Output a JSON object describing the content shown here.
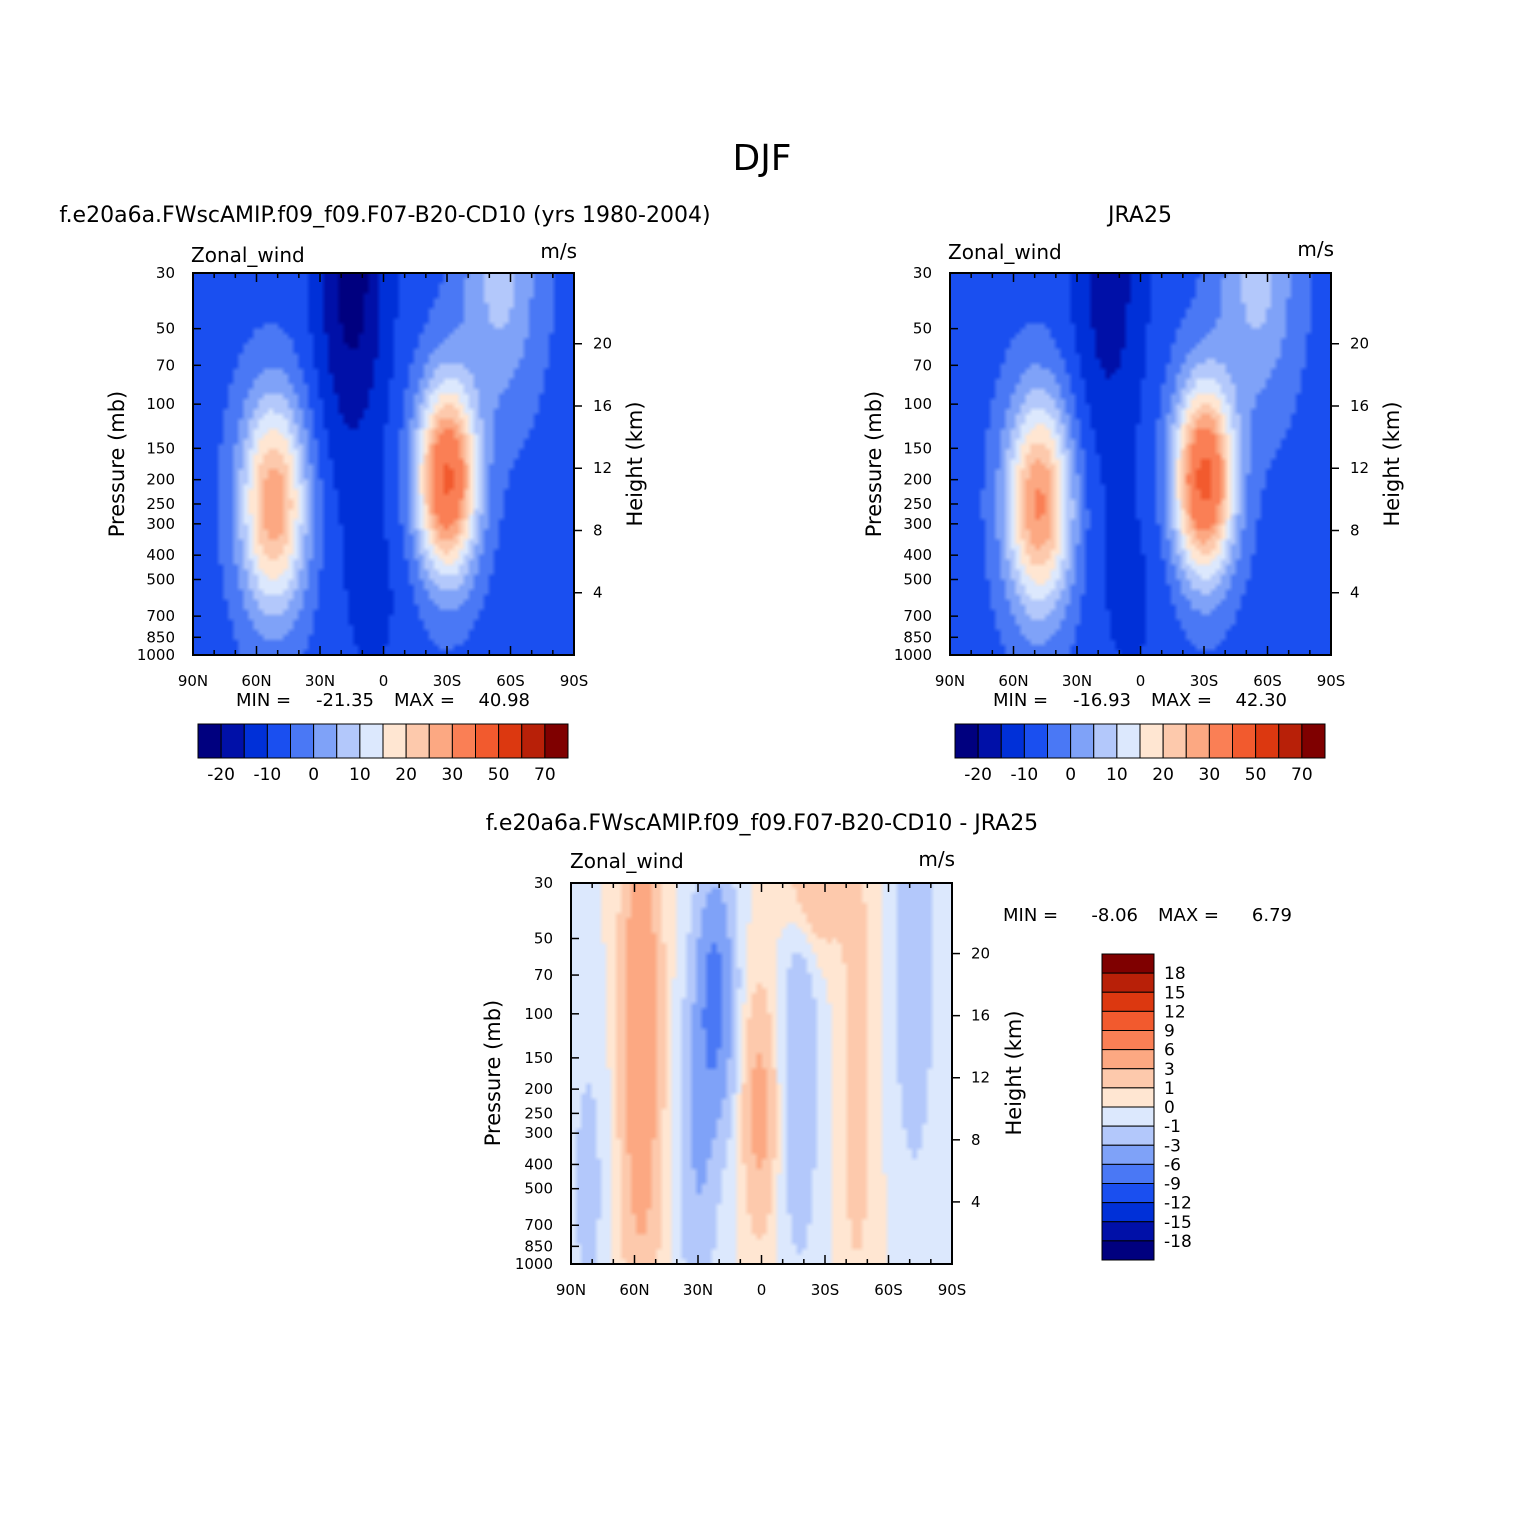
{
  "figure": {
    "title": "DJF"
  },
  "chart_data": [
    {
      "type": "heatmap",
      "id": "model",
      "title": "f.e20a6a.FWscAMIP.f09_f09.F07-B20-CD10 (yrs 1980-2004)",
      "variable_label": "Zonal_wind",
      "units_label": "m/s",
      "ylabel": "Pressure (mb)",
      "ylabel_right": "Height (km)",
      "x_ticks": [
        "90N",
        "60N",
        "30N",
        "0",
        "30S",
        "60S",
        "90S"
      ],
      "y_ticks": [
        "30",
        "50",
        "70",
        "100",
        "150",
        "200",
        "250",
        "300",
        "400",
        "500",
        "700",
        "850",
        "1000"
      ],
      "height_ticks": [
        "20",
        "16",
        "12",
        "8",
        "4"
      ],
      "stats": {
        "min_label": "MIN =",
        "min": "-21.35",
        "max_label": "MAX =",
        "max": "40.98"
      },
      "colorbar": {
        "orientation": "horizontal",
        "labels": [
          "-20",
          "-10",
          "0",
          "10",
          "20",
          "30",
          "50",
          "70"
        ]
      },
      "jets": [
        {
          "lat": -30,
          "p": 200,
          "peak": 40.98
        },
        {
          "lat": 52,
          "p": 250,
          "peak": 32
        }
      ],
      "minimum": {
        "lat": 15,
        "p": 30,
        "value": -21.35
      }
    },
    {
      "type": "heatmap",
      "id": "obs",
      "title": "JRA25",
      "variable_label": "Zonal_wind",
      "units_label": "m/s",
      "ylabel": "Pressure (mb)",
      "ylabel_right": "Height (km)",
      "x_ticks": [
        "90N",
        "60N",
        "30N",
        "0",
        "30S",
        "60S",
        "90S"
      ],
      "y_ticks": [
        "30",
        "50",
        "70",
        "100",
        "150",
        "200",
        "250",
        "300",
        "400",
        "500",
        "700",
        "850",
        "1000"
      ],
      "height_ticks": [
        "20",
        "16",
        "12",
        "8",
        "4"
      ],
      "stats": {
        "min_label": "MIN =",
        "min": "-16.93",
        "max_label": "MAX =",
        "max": "42.30"
      },
      "colorbar": {
        "orientation": "horizontal",
        "labels": [
          "-20",
          "-10",
          "0",
          "10",
          "20",
          "30",
          "50",
          "70"
        ]
      },
      "jets": [
        {
          "lat": -30,
          "p": 200,
          "peak": 42.3
        },
        {
          "lat": 48,
          "p": 250,
          "peak": 34
        }
      ],
      "minimum": {
        "lat": 15,
        "p": 30,
        "value": -16.93
      }
    },
    {
      "type": "heatmap",
      "id": "diff",
      "title": "f.e20a6a.FWscAMIP.f09_f09.F07-B20-CD10 - JRA25",
      "variable_label": "Zonal_wind",
      "units_label": "m/s",
      "ylabel": "Pressure (mb)",
      "ylabel_right": "Height (km)",
      "x_ticks": [
        "90N",
        "60N",
        "30N",
        "0",
        "30S",
        "60S",
        "90S"
      ],
      "y_ticks": [
        "30",
        "50",
        "70",
        "100",
        "150",
        "200",
        "250",
        "300",
        "400",
        "500",
        "700",
        "850",
        "1000"
      ],
      "height_ticks": [
        "20",
        "16",
        "12",
        "8",
        "4"
      ],
      "stats": {
        "min_label": "MIN =",
        "min": "-8.06",
        "max_label": "MAX =",
        "max": "6.79"
      },
      "colorbar": {
        "orientation": "vertical",
        "labels": [
          "18",
          "15",
          "12",
          "9",
          "6",
          "3",
          "1",
          "0",
          "-1",
          "-3",
          "-6",
          "-9",
          "-12",
          "-15",
          "-18"
        ]
      }
    }
  ],
  "palette": {
    "fields": [
      "#00007f",
      "#0010a8",
      "#0030d8",
      "#1a4ff0",
      "#4a78f5",
      "#7fa2f8",
      "#b3c8fb",
      "#dce8fd",
      "#ffe6d2",
      "#fdc9ac",
      "#fca882",
      "#fa7f55",
      "#f25a2e",
      "#dc3810",
      "#b82008",
      "#7f0000"
    ],
    "diff": [
      "#7f0000",
      "#b82008",
      "#dc3810",
      "#f25a2e",
      "#fa7f55",
      "#fca882",
      "#fdc9ac",
      "#ffe6d2",
      "#dce8fd",
      "#b3c8fb",
      "#7fa2f8",
      "#4a78f5",
      "#1a4ff0",
      "#0030d8",
      "#0010a8",
      "#00007f"
    ]
  }
}
